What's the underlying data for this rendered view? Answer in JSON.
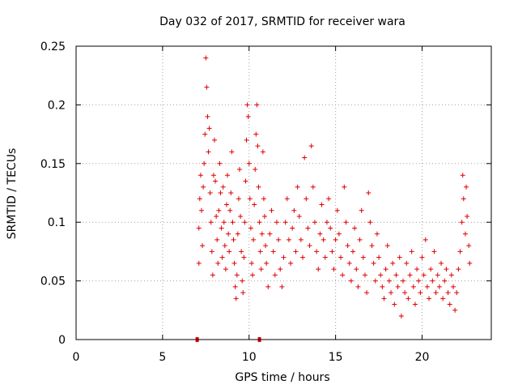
{
  "chart_data": {
    "type": "scatter",
    "title": "Day 032 of 2017, SRMTID for receiver wara",
    "xlabel": "GPS time / hours",
    "ylabel": "SRMTID / TECUs",
    "xlim": [
      0,
      24
    ],
    "ylim": [
      0,
      0.25
    ],
    "xticks": [
      0,
      5,
      10,
      15,
      20
    ],
    "xtick_labels": [
      "0",
      "5",
      "10",
      "15",
      "20"
    ],
    "yticks": [
      0,
      0.05,
      0.1,
      0.15,
      0.2,
      0.25
    ],
    "ytick_labels": [
      "0",
      "0.05",
      "0.1",
      "0.15",
      "0.2",
      "0.25"
    ],
    "grid": true,
    "marker": "+",
    "color": "#e00000",
    "series": [
      {
        "name": "SRMTID",
        "points": [
          [
            7.1,
            0.065
          ],
          [
            7.1,
            0.095
          ],
          [
            7.15,
            0.12
          ],
          [
            7.2,
            0.14
          ],
          [
            7.25,
            0.11
          ],
          [
            7.3,
            0.08
          ],
          [
            7.35,
            0.13
          ],
          [
            7.4,
            0.15
          ],
          [
            7.45,
            0.175
          ],
          [
            7.5,
            0.24
          ],
          [
            7.55,
            0.215
          ],
          [
            7.6,
            0.19
          ],
          [
            7.65,
            0.16
          ],
          [
            7.7,
            0.18
          ],
          [
            7.75,
            0.125
          ],
          [
            7.8,
            0.1
          ],
          [
            7.85,
            0.075
          ],
          [
            7.9,
            0.055
          ],
          [
            7.95,
            0.14
          ],
          [
            8.0,
            0.17
          ],
          [
            8.05,
            0.135
          ],
          [
            8.1,
            0.105
          ],
          [
            8.15,
            0.085
          ],
          [
            8.2,
            0.065
          ],
          [
            8.25,
            0.11
          ],
          [
            8.3,
            0.15
          ],
          [
            8.35,
            0.125
          ],
          [
            8.4,
            0.095
          ],
          [
            8.45,
            0.07
          ],
          [
            8.5,
            0.13
          ],
          [
            8.55,
            0.1
          ],
          [
            8.6,
            0.08
          ],
          [
            8.65,
            0.06
          ],
          [
            8.7,
            0.115
          ],
          [
            8.75,
            0.14
          ],
          [
            8.8,
            0.09
          ],
          [
            8.85,
            0.075
          ],
          [
            8.9,
            0.11
          ],
          [
            8.95,
            0.125
          ],
          [
            9.0,
            0.16
          ],
          [
            9.05,
            0.1
          ],
          [
            9.1,
            0.085
          ],
          [
            9.15,
            0.065
          ],
          [
            9.2,
            0.045
          ],
          [
            9.25,
            0.035
          ],
          [
            9.3,
            0.055
          ],
          [
            9.35,
            0.09
          ],
          [
            9.4,
            0.12
          ],
          [
            9.45,
            0.145
          ],
          [
            9.5,
            0.105
          ],
          [
            9.55,
            0.075
          ],
          [
            9.6,
            0.05
          ],
          [
            9.65,
            0.04
          ],
          [
            9.7,
            0.07
          ],
          [
            9.75,
            0.1
          ],
          [
            9.8,
            0.135
          ],
          [
            9.85,
            0.17
          ],
          [
            9.9,
            0.2
          ],
          [
            9.95,
            0.19
          ],
          [
            10.0,
            0.15
          ],
          [
            10.05,
            0.12
          ],
          [
            10.1,
            0.095
          ],
          [
            10.15,
            0.065
          ],
          [
            10.2,
            0.055
          ],
          [
            10.25,
            0.085
          ],
          [
            10.3,
            0.115
          ],
          [
            10.35,
            0.145
          ],
          [
            10.4,
            0.175
          ],
          [
            10.45,
            0.2
          ],
          [
            10.5,
            0.165
          ],
          [
            10.55,
            0.13
          ],
          [
            10.6,
            0.1
          ],
          [
            10.65,
            0.075
          ],
          [
            10.7,
            0.06
          ],
          [
            10.75,
            0.09
          ],
          [
            10.8,
            0.16
          ],
          [
            10.85,
            0.12
          ],
          [
            10.9,
            0.105
          ],
          [
            10.95,
            0.08
          ],
          [
            11.0,
            0.065
          ],
          [
            11.1,
            0.045
          ],
          [
            11.2,
            0.09
          ],
          [
            11.3,
            0.11
          ],
          [
            11.4,
            0.075
          ],
          [
            11.5,
            0.055
          ],
          [
            11.6,
            0.1
          ],
          [
            11.7,
            0.085
          ],
          [
            11.8,
            0.06
          ],
          [
            11.9,
            0.045
          ],
          [
            12.0,
            0.07
          ],
          [
            12.1,
            0.1
          ],
          [
            12.2,
            0.12
          ],
          [
            12.3,
            0.085
          ],
          [
            12.4,
            0.065
          ],
          [
            12.5,
            0.095
          ],
          [
            12.6,
            0.11
          ],
          [
            12.7,
            0.075
          ],
          [
            12.8,
            0.13
          ],
          [
            12.9,
            0.105
          ],
          [
            13.0,
            0.085
          ],
          [
            13.1,
            0.07
          ],
          [
            13.2,
            0.155
          ],
          [
            13.3,
            0.12
          ],
          [
            13.4,
            0.095
          ],
          [
            13.5,
            0.08
          ],
          [
            13.6,
            0.165
          ],
          [
            13.7,
            0.13
          ],
          [
            13.8,
            0.1
          ],
          [
            13.9,
            0.075
          ],
          [
            14.0,
            0.06
          ],
          [
            14.1,
            0.09
          ],
          [
            14.2,
            0.115
          ],
          [
            14.3,
            0.085
          ],
          [
            14.4,
            0.07
          ],
          [
            14.5,
            0.1
          ],
          [
            14.6,
            0.12
          ],
          [
            14.7,
            0.095
          ],
          [
            14.8,
            0.075
          ],
          [
            14.9,
            0.06
          ],
          [
            15.0,
            0.085
          ],
          [
            15.1,
            0.11
          ],
          [
            15.2,
            0.09
          ],
          [
            15.3,
            0.07
          ],
          [
            15.4,
            0.055
          ],
          [
            15.5,
            0.13
          ],
          [
            15.6,
            0.1
          ],
          [
            15.7,
            0.08
          ],
          [
            15.8,
            0.065
          ],
          [
            15.9,
            0.05
          ],
          [
            16.0,
            0.075
          ],
          [
            16.1,
            0.095
          ],
          [
            16.2,
            0.06
          ],
          [
            16.3,
            0.045
          ],
          [
            16.4,
            0.085
          ],
          [
            16.5,
            0.11
          ],
          [
            16.6,
            0.07
          ],
          [
            16.7,
            0.055
          ],
          [
            16.8,
            0.04
          ],
          [
            16.9,
            0.125
          ],
          [
            17.0,
            0.1
          ],
          [
            17.1,
            0.08
          ],
          [
            17.2,
            0.065
          ],
          [
            17.3,
            0.05
          ],
          [
            17.4,
            0.09
          ],
          [
            17.5,
            0.07
          ],
          [
            17.6,
            0.055
          ],
          [
            17.7,
            0.045
          ],
          [
            17.8,
            0.035
          ],
          [
            17.9,
            0.06
          ],
          [
            18.0,
            0.08
          ],
          [
            18.1,
            0.05
          ],
          [
            18.2,
            0.04
          ],
          [
            18.3,
            0.065
          ],
          [
            18.4,
            0.03
          ],
          [
            18.5,
            0.055
          ],
          [
            18.6,
            0.045
          ],
          [
            18.7,
            0.07
          ],
          [
            18.8,
            0.02
          ],
          [
            18.9,
            0.05
          ],
          [
            19.0,
            0.04
          ],
          [
            19.1,
            0.065
          ],
          [
            19.2,
            0.035
          ],
          [
            19.3,
            0.055
          ],
          [
            19.4,
            0.075
          ],
          [
            19.5,
            0.045
          ],
          [
            19.6,
            0.03
          ],
          [
            19.7,
            0.06
          ],
          [
            19.8,
            0.05
          ],
          [
            19.9,
            0.04
          ],
          [
            20.0,
            0.07
          ],
          [
            20.1,
            0.055
          ],
          [
            20.2,
            0.085
          ],
          [
            20.3,
            0.045
          ],
          [
            20.4,
            0.035
          ],
          [
            20.5,
            0.06
          ],
          [
            20.6,
            0.05
          ],
          [
            20.7,
            0.075
          ],
          [
            20.8,
            0.04
          ],
          [
            20.9,
            0.055
          ],
          [
            21.0,
            0.045
          ],
          [
            21.1,
            0.065
          ],
          [
            21.2,
            0.035
          ],
          [
            21.3,
            0.05
          ],
          [
            21.4,
            0.06
          ],
          [
            21.5,
            0.04
          ],
          [
            21.6,
            0.03
          ],
          [
            21.7,
            0.055
          ],
          [
            21.8,
            0.045
          ],
          [
            21.9,
            0.025
          ],
          [
            22.0,
            0.04
          ],
          [
            22.1,
            0.06
          ],
          [
            22.2,
            0.075
          ],
          [
            22.3,
            0.1
          ],
          [
            22.35,
            0.14
          ],
          [
            22.4,
            0.12
          ],
          [
            22.5,
            0.09
          ],
          [
            22.55,
            0.13
          ],
          [
            22.6,
            0.105
          ],
          [
            22.7,
            0.08
          ],
          [
            22.75,
            0.065
          ]
        ]
      }
    ],
    "markers_on_axis": [
      7.0,
      10.6
    ]
  }
}
